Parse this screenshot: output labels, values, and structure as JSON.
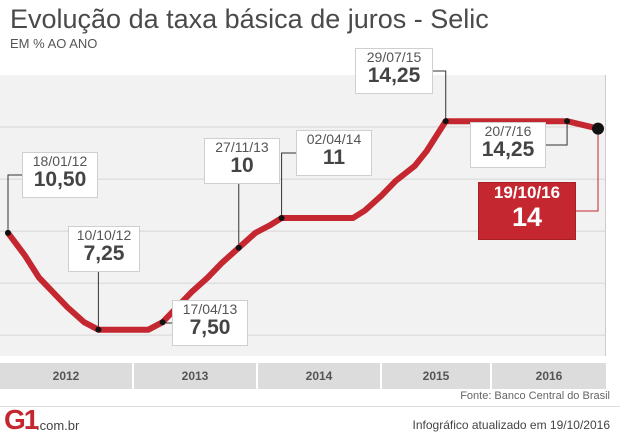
{
  "header": {
    "title": "Evolução da taxa básica de juros - Selic",
    "subtitle": "EM % AO ANO"
  },
  "colors": {
    "line": "#c4272f",
    "highlight": "#c4272f",
    "plot_background": "#f2f2f2",
    "axis_band": "#dcdcdc"
  },
  "chart_data": {
    "type": "line",
    "title": "Evolução da taxa básica de juros - Selic",
    "ylabel": "EM % AO ANO",
    "xlabel": "",
    "x_ticks": [
      "2012",
      "2013",
      "2014",
      "2015",
      "2016"
    ],
    "grid": true,
    "ylim": [
      6.5,
      15.7
    ],
    "series": [
      {
        "values": [
          {
            "x": "2012-01-18",
            "y": 10.5
          },
          {
            "x": "2012-03-07",
            "y": 9.75
          },
          {
            "x": "2012-04-18",
            "y": 9.0
          },
          {
            "x": "2012-05-30",
            "y": 8.5
          },
          {
            "x": "2012-07-11",
            "y": 8.0
          },
          {
            "x": "2012-08-29",
            "y": 7.5
          },
          {
            "x": "2012-10-10",
            "y": 7.25
          },
          {
            "x": "2013-03-06",
            "y": 7.25
          },
          {
            "x": "2013-04-17",
            "y": 7.5
          },
          {
            "x": "2013-05-29",
            "y": 8.0
          },
          {
            "x": "2013-07-10",
            "y": 8.5
          },
          {
            "x": "2013-08-28",
            "y": 9.0
          },
          {
            "x": "2013-10-09",
            "y": 9.5
          },
          {
            "x": "2013-11-27",
            "y": 10.0
          },
          {
            "x": "2014-01-15",
            "y": 10.5
          },
          {
            "x": "2014-02-26",
            "y": 10.75
          },
          {
            "x": "2014-04-02",
            "y": 11.0
          },
          {
            "x": "2014-10-29",
            "y": 11.0
          },
          {
            "x": "2014-12-03",
            "y": 11.25
          },
          {
            "x": "2015-01-21",
            "y": 11.75
          },
          {
            "x": "2015-03-04",
            "y": 12.25
          },
          {
            "x": "2015-04-29",
            "y": 12.75
          },
          {
            "x": "2015-06-03",
            "y": 13.25
          },
          {
            "x": "2015-07-29",
            "y": 14.25
          },
          {
            "x": "2016-07-20",
            "y": 14.25
          },
          {
            "x": "2016-10-19",
            "y": 14.0
          }
        ]
      }
    ],
    "annotations": [
      {
        "date": "18/01/12",
        "value": "10,50",
        "x": "2012-01-18",
        "y": 10.5
      },
      {
        "date": "10/10/12",
        "value": "7,25",
        "x": "2012-10-10",
        "y": 7.25
      },
      {
        "date": "17/04/13",
        "value": "7,50",
        "x": "2013-04-17",
        "y": 7.5
      },
      {
        "date": "27/11/13",
        "value": "10",
        "x": "2013-11-27",
        "y": 10.0
      },
      {
        "date": "02/04/14",
        "value": "11",
        "x": "2014-04-02",
        "y": 11.0
      },
      {
        "date": "29/07/15",
        "value": "14,25",
        "x": "2015-07-29",
        "y": 14.25
      },
      {
        "date": "20/7/16",
        "value": "14,25",
        "x": "2016-07-20",
        "y": 14.25
      },
      {
        "date": "19/10/16",
        "value": "14",
        "x": "2016-10-19",
        "y": 14.0,
        "highlight": true
      }
    ]
  },
  "footer": {
    "source": "Fonte: Banco Central do Brasil",
    "logo": "G1",
    "logo_suffix": ".com.br",
    "updated": "Infográfico atualizado em 19/10/2016"
  }
}
